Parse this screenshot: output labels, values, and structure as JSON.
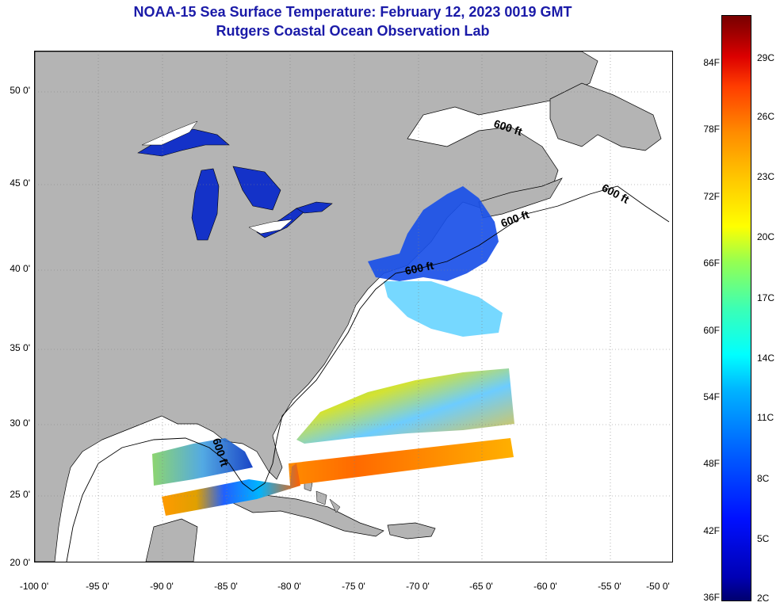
{
  "title": {
    "line1": "NOAA-15 Sea Surface Temperature:  February 12, 2023 0019 GMT",
    "line2": "Rutgers Coastal Ocean Observation Lab"
  },
  "map": {
    "latitude_labels": [
      "50 0'",
      "45 0'",
      "40 0'",
      "35 0'",
      "30 0'",
      "25 0'",
      "20 0'"
    ],
    "longitude_labels": [
      "-100 0'",
      "-95 0'",
      "-90 0'",
      "-85 0'",
      "-80 0'",
      "-75 0'",
      "-70 0'",
      "-65 0'",
      "-60 0'",
      "-55 0'",
      "-50 0'"
    ],
    "contour_labels": [
      "600 ft",
      "600 ft",
      "600 ft",
      "600 ft",
      "600 ft"
    ],
    "colors": {
      "land": "#b4b4b4",
      "ocean": "#ffffff",
      "lakes": "#1432c8",
      "grid": "#808080"
    }
  },
  "colorbar": {
    "fahrenheit_labels": [
      "84F",
      "78F",
      "72F",
      "66F",
      "60F",
      "54F",
      "48F",
      "42F",
      "36F"
    ],
    "celsius_labels": [
      "29C",
      "26C",
      "23C",
      "20C",
      "17C",
      "14C",
      "11C",
      "8C",
      "5C",
      "2C"
    ]
  }
}
